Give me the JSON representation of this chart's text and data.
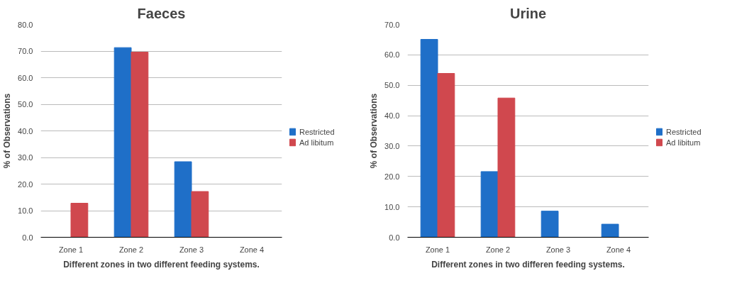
{
  "chart_data": [
    {
      "type": "bar",
      "title": "Faeces",
      "xlabel": "Different zones in two different feeding systems.",
      "ylabel": "% of Observations",
      "categories": [
        "Zone 1",
        "Zone 2",
        "Zone 3",
        "Zone 4"
      ],
      "series": [
        {
          "name": "Restricted",
          "color": "#1f6fc8",
          "values": [
            0,
            71.3,
            28.4,
            0
          ]
        },
        {
          "name": "Ad libitum",
          "color": "#d0484e",
          "values": [
            12.8,
            69.6,
            17.2,
            0
          ]
        }
      ],
      "ylim": [
        0,
        80
      ],
      "yticks": [
        {
          "value": 0,
          "label": "0.0"
        },
        {
          "value": 10,
          "label": "10.0"
        },
        {
          "value": 20,
          "label": "20.0"
        },
        {
          "value": 30,
          "label": "30.0"
        },
        {
          "value": 40,
          "label": "40.0"
        },
        {
          "value": 50,
          "label": "50.0"
        },
        {
          "value": 60,
          "label": "60.0"
        },
        {
          "value": 70,
          "label": "70.0"
        },
        {
          "value": 80,
          "label": "80.0"
        }
      ],
      "grid": "y",
      "legend": "right"
    },
    {
      "type": "bar",
      "title": "Urine",
      "xlabel": "Different zones in two differen feeding systems.",
      "ylabel": "% of Observations",
      "categories": [
        "Zone 1",
        "Zone 2",
        "Zone 3",
        "Zone 4"
      ],
      "series": [
        {
          "name": "Restricted",
          "color": "#1f6fc8",
          "values": [
            65.1,
            21.6,
            8.6,
            4.3
          ]
        },
        {
          "name": "Ad libitum",
          "color": "#d0484e",
          "values": [
            53.9,
            45.8,
            0,
            0
          ]
        }
      ],
      "ylim": [
        0,
        70
      ],
      "yticks": [
        {
          "value": 0,
          "label": "0.0"
        },
        {
          "value": 10,
          "label": "10.0"
        },
        {
          "value": 20,
          "label": "20.0"
        },
        {
          "value": 30,
          "label": "30.0"
        },
        {
          "value": 40,
          "label": "40.0"
        },
        {
          "value": 50,
          "label": "50.0"
        },
        {
          "value": 60,
          "label": "60.0"
        },
        {
          "value": 70,
          "label": "70.0"
        }
      ],
      "grid": "y",
      "legend": "right"
    }
  ]
}
